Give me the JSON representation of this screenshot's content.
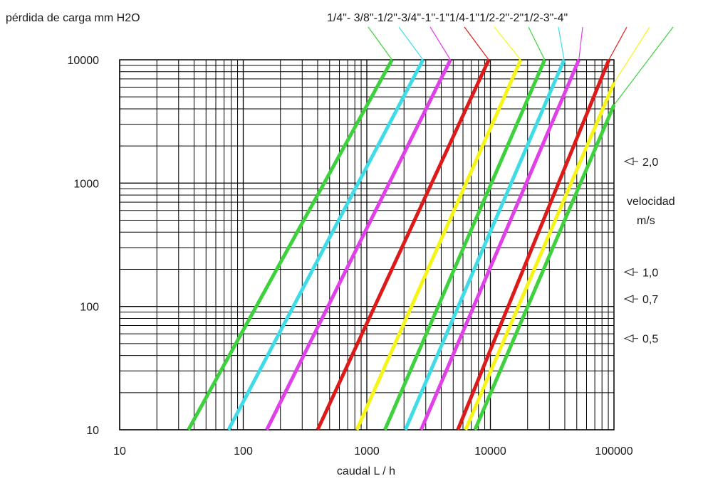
{
  "chart_data": {
    "type": "line",
    "title": "",
    "ylabel": "pérdida de carga mm H2O",
    "xlabel": "caudal L / h",
    "x_scale": "log",
    "y_scale": "log",
    "xlim": [
      10,
      100000
    ],
    "ylim": [
      10,
      10000
    ],
    "x_ticks": [
      "10",
      "100",
      "1000",
      "10000",
      "100000"
    ],
    "y_ticks": [
      "10",
      "100",
      "1000",
      "10000"
    ],
    "pipe_sizes_header": "1/4\"- 3/8\"-1/2\"-3/4\"-1\"-1\"1/4-1\"1/2-2\"-2\"1/2-3\"-4\"",
    "velocity": {
      "title_line1": "velocidad",
      "title_line2": "m/s",
      "markers": [
        {
          "label": "2,0",
          "y": 1500
        },
        {
          "label": "1,0",
          "y": 190
        },
        {
          "label": "0,7",
          "y": 115
        },
        {
          "label": "0,5",
          "y": 55
        }
      ]
    },
    "series": [
      {
        "name": "1/4\"",
        "color": "#3dd13d",
        "x": [
          36,
          1600
        ],
        "y": [
          10,
          10000
        ]
      },
      {
        "name": "3/8\"",
        "color": "#3fdce8",
        "x": [
          76,
          2850
        ],
        "y": [
          10,
          10000
        ]
      },
      {
        "name": "1/2\"",
        "color": "#e040e8",
        "x": [
          155,
          4750
        ],
        "y": [
          10,
          10000
        ]
      },
      {
        "name": "3/4\"",
        "color": "#dd1a1a",
        "x": [
          400,
          9700
        ],
        "y": [
          10,
          10000
        ]
      },
      {
        "name": "1\"",
        "color": "#f5f51a",
        "x": [
          830,
          17600
        ],
        "y": [
          10,
          10000
        ]
      },
      {
        "name": "1\"1/4",
        "color": "#3dd13d",
        "x": [
          1400,
          27500
        ],
        "y": [
          10,
          10000
        ]
      },
      {
        "name": "1\"1/2",
        "color": "#3fdce8",
        "x": [
          2050,
          39500
        ],
        "y": [
          10,
          10000
        ]
      },
      {
        "name": "2\"",
        "color": "#e040e8",
        "x": [
          2750,
          52000
        ],
        "y": [
          10,
          10000
        ]
      },
      {
        "name": "2\"1/2",
        "color": "#dd1a1a",
        "x": [
          5450,
          91000
        ],
        "y": [
          10,
          10000
        ]
      },
      {
        "name": "3\"",
        "color": "#f5f51a",
        "x": [
          6300,
          100000
        ],
        "y": [
          10,
          6500
        ]
      },
      {
        "name": "4\"",
        "color": "#3dd13d",
        "x": [
          7500,
          100000
        ],
        "y": [
          10,
          4300
        ]
      }
    ],
    "grid": true,
    "legend": "top"
  }
}
